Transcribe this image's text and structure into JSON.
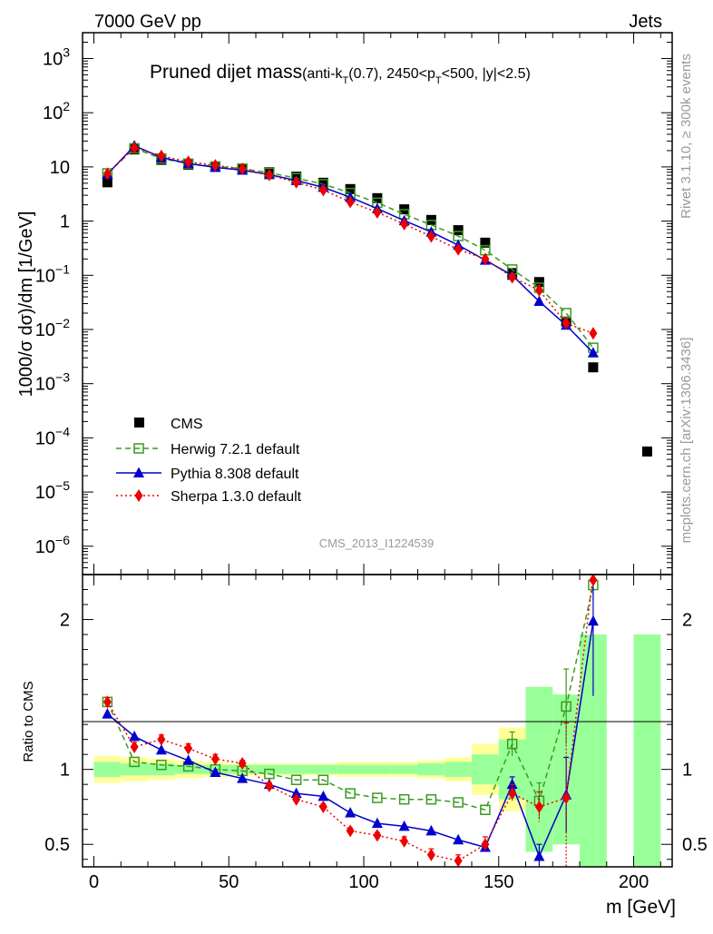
{
  "header": {
    "left": "7000 GeV pp",
    "right": "Jets"
  },
  "side_labels": {
    "rivet": "Rivet 3.1.10, ≥ 300k events",
    "mcplots": "mcplots.cern.ch [arXiv:1306.3436]"
  },
  "analysis_id": "CMS_2013_I1224539",
  "title": {
    "main": "Pruned dijet mass",
    "sub_1": "(anti-k",
    "sub_T": "T",
    "sub_2": "(0.7), 2450<p",
    "sub_3": "<500, |y|<2.5)"
  },
  "axis_text": {
    "ylabel_top": "1000/σ dσ)/dm [1/GeV]",
    "ylabel_bottom": "Ratio to CMS",
    "xlabel": "m [GeV]"
  },
  "legend": [
    {
      "key": "cms",
      "label": "CMS"
    },
    {
      "key": "herwig",
      "label": "Herwig 7.2.1 default"
    },
    {
      "key": "pythia",
      "label": "Pythia 8.308 default"
    },
    {
      "key": "sherpa",
      "label": "Sherpa 1.3.0 default"
    }
  ],
  "colors": {
    "cms": "#000000",
    "herwig": "#3a9a1e",
    "pythia": "#0000cc",
    "sherpa": "#ee0000",
    "band_stat": "#99ff99",
    "band_total": "#ffff99"
  },
  "chart_data": {
    "type": "line",
    "x_range": [
      0,
      210
    ],
    "x_ticks": [
      0,
      50,
      100,
      150,
      200
    ],
    "y_log": true,
    "y_range_top": [
      3e-07,
      3000
    ],
    "y_ticks_top": [
      {
        "v": 1000.0,
        "base": "10",
        "exp": "3"
      },
      {
        "v": 100.0,
        "base": "10",
        "exp": "2"
      },
      {
        "v": 10,
        "base": "10",
        "exp": ""
      },
      {
        "v": 1,
        "base": "1",
        "exp": ""
      },
      {
        "v": 0.1,
        "base": "10",
        "exp": "−1"
      },
      {
        "v": 0.01,
        "base": "10",
        "exp": "−2"
      },
      {
        "v": 0.001,
        "base": "10",
        "exp": "−3"
      },
      {
        "v": 0.0001,
        "base": "10",
        "exp": "−4"
      },
      {
        "v": 1e-05,
        "base": "10",
        "exp": "−5"
      },
      {
        "v": 1e-06,
        "base": "10",
        "exp": "−6"
      }
    ],
    "ratio_range": [
      0.35,
      2.3
    ],
    "ratio_ticks": [
      {
        "v": 0.5,
        "label": "0.5"
      },
      {
        "v": 1,
        "label": "1"
      },
      {
        "v": 2,
        "label": "2"
      }
    ],
    "bin_edges": [
      0,
      10,
      20,
      30,
      40,
      50,
      60,
      70,
      80,
      90,
      100,
      110,
      120,
      130,
      140,
      150,
      160,
      170,
      180,
      190,
      200,
      210
    ],
    "x": [
      5,
      15,
      25,
      35,
      45,
      55,
      65,
      75,
      85,
      95,
      105,
      115,
      125,
      135,
      145,
      155,
      165,
      175,
      185
    ],
    "cms": {
      "x": [
        5,
        15,
        25,
        35,
        45,
        55,
        65,
        75,
        85,
        95,
        105,
        115,
        125,
        135,
        145,
        155,
        165,
        175,
        185,
        205
      ],
      "y": [
        5.2,
        21,
        13.5,
        11,
        10,
        9.2,
        8,
        6.6,
        5.1,
        3.9,
        2.65,
        1.65,
        1.05,
        0.68,
        0.4,
        0.11,
        0.075,
        0.014,
        0.002,
        5.6e-05
      ]
    },
    "series": [
      {
        "key": "herwig",
        "name": "Herwig 7.2.1 default",
        "y": [
          7.6,
          22,
          14.3,
          11.5,
          10.2,
          9.3,
          7.8,
          6.2,
          4.8,
          3.3,
          2.18,
          1.34,
          0.85,
          0.53,
          0.29,
          0.128,
          0.059,
          0.02,
          0.0046
        ],
        "ratio": [
          1.45,
          1.05,
          1.03,
          1.02,
          1.0,
          0.99,
          0.97,
          0.93,
          0.93,
          0.84,
          0.81,
          0.8,
          0.8,
          0.78,
          0.73,
          1.17,
          0.79,
          1.42,
          2.23
        ],
        "ratio_err": [
          0,
          0,
          0,
          0,
          0,
          0,
          0,
          0,
          0,
          0,
          0,
          0,
          0,
          0,
          0,
          0.08,
          0.12,
          0.25,
          0.1
        ]
      },
      {
        "key": "pythia",
        "name": "Pythia 8.308 default",
        "y": [
          7.3,
          24.5,
          15,
          11.5,
          9.8,
          8.7,
          7.2,
          5.6,
          4.2,
          2.75,
          1.7,
          1.02,
          0.63,
          0.36,
          0.19,
          0.1,
          0.033,
          0.012,
          0.0037
        ],
        "ratio": [
          1.37,
          1.22,
          1.13,
          1.06,
          0.98,
          0.94,
          0.9,
          0.84,
          0.82,
          0.71,
          0.64,
          0.62,
          0.59,
          0.53,
          0.48,
          0.9,
          0.42,
          0.83,
          1.99
        ],
        "ratio_err": [
          0,
          0,
          0,
          0,
          0,
          0,
          0,
          0,
          0,
          0,
          0,
          0,
          0,
          0,
          0.02,
          0.05,
          0.08,
          0.25,
          0.5
        ]
      },
      {
        "key": "sherpa",
        "name": "Sherpa 1.3.0 default",
        "y": [
          7.5,
          22.5,
          16,
          12.4,
          10.7,
          9.2,
          7.1,
          5.2,
          3.75,
          2.25,
          1.45,
          0.88,
          0.52,
          0.3,
          0.2,
          0.092,
          0.053,
          0.013,
          0.0085
        ],
        "ratio": [
          1.45,
          1.15,
          1.2,
          1.14,
          1.07,
          1.04,
          0.89,
          0.8,
          0.75,
          0.59,
          0.56,
          0.52,
          0.43,
          0.39,
          0.5,
          0.84,
          0.75,
          0.81,
          2.3
        ],
        "ratio_err": [
          0.03,
          0.03,
          0.03,
          0.03,
          0.03,
          0.02,
          0.02,
          0.02,
          0.02,
          0.02,
          0.02,
          0.03,
          0.04,
          0.04,
          0.05,
          0.06,
          0.1,
          0.5,
          0
        ]
      }
    ],
    "bands": [
      {
        "x0": 0,
        "x1": 10,
        "stat": 0.05,
        "total": 0.09
      },
      {
        "x0": 10,
        "x1": 20,
        "stat": 0.04,
        "total": 0.08
      },
      {
        "x0": 20,
        "x1": 30,
        "stat": 0.04,
        "total": 0.07
      },
      {
        "x0": 30,
        "x1": 40,
        "stat": 0.03,
        "total": 0.06
      },
      {
        "x0": 40,
        "x1": 50,
        "stat": 0.03,
        "total": 0.05
      },
      {
        "x0": 50,
        "x1": 60,
        "stat": 0.03,
        "total": 0.04
      },
      {
        "x0": 60,
        "x1": 70,
        "stat": 0.03,
        "total": 0.04
      },
      {
        "x0": 70,
        "x1": 80,
        "stat": 0.03,
        "total": 0.04
      },
      {
        "x0": 80,
        "x1": 90,
        "stat": 0.03,
        "total": 0.04
      },
      {
        "x0": 90,
        "x1": 100,
        "stat": 0.03,
        "total": 0.05
      },
      {
        "x0": 100,
        "x1": 110,
        "stat": 0.03,
        "total": 0.05
      },
      {
        "x0": 110,
        "x1": 120,
        "stat": 0.03,
        "total": 0.05
      },
      {
        "x0": 120,
        "x1": 130,
        "stat": 0.04,
        "total": 0.06
      },
      {
        "x0": 130,
        "x1": 140,
        "stat": 0.05,
        "total": 0.08
      },
      {
        "x0": 140,
        "x1": 150,
        "stat": 0.1,
        "total": 0.17
      },
      {
        "x0": 150,
        "x1": 160,
        "stat": 0.2,
        "total": 0.28
      },
      {
        "x0": 160,
        "x1": 170,
        "stat": 0.55,
        "total": 0.55
      },
      {
        "x0": 170,
        "x1": 180,
        "stat": 0.5,
        "total": 0.5
      },
      {
        "x0": 180,
        "x1": 190,
        "stat": 0.9,
        "total": 0.9
      },
      {
        "x0": 200,
        "x1": 210,
        "stat": 0.9,
        "total": 0.9
      }
    ],
    "grid": false,
    "legend_position": "lower-left"
  }
}
